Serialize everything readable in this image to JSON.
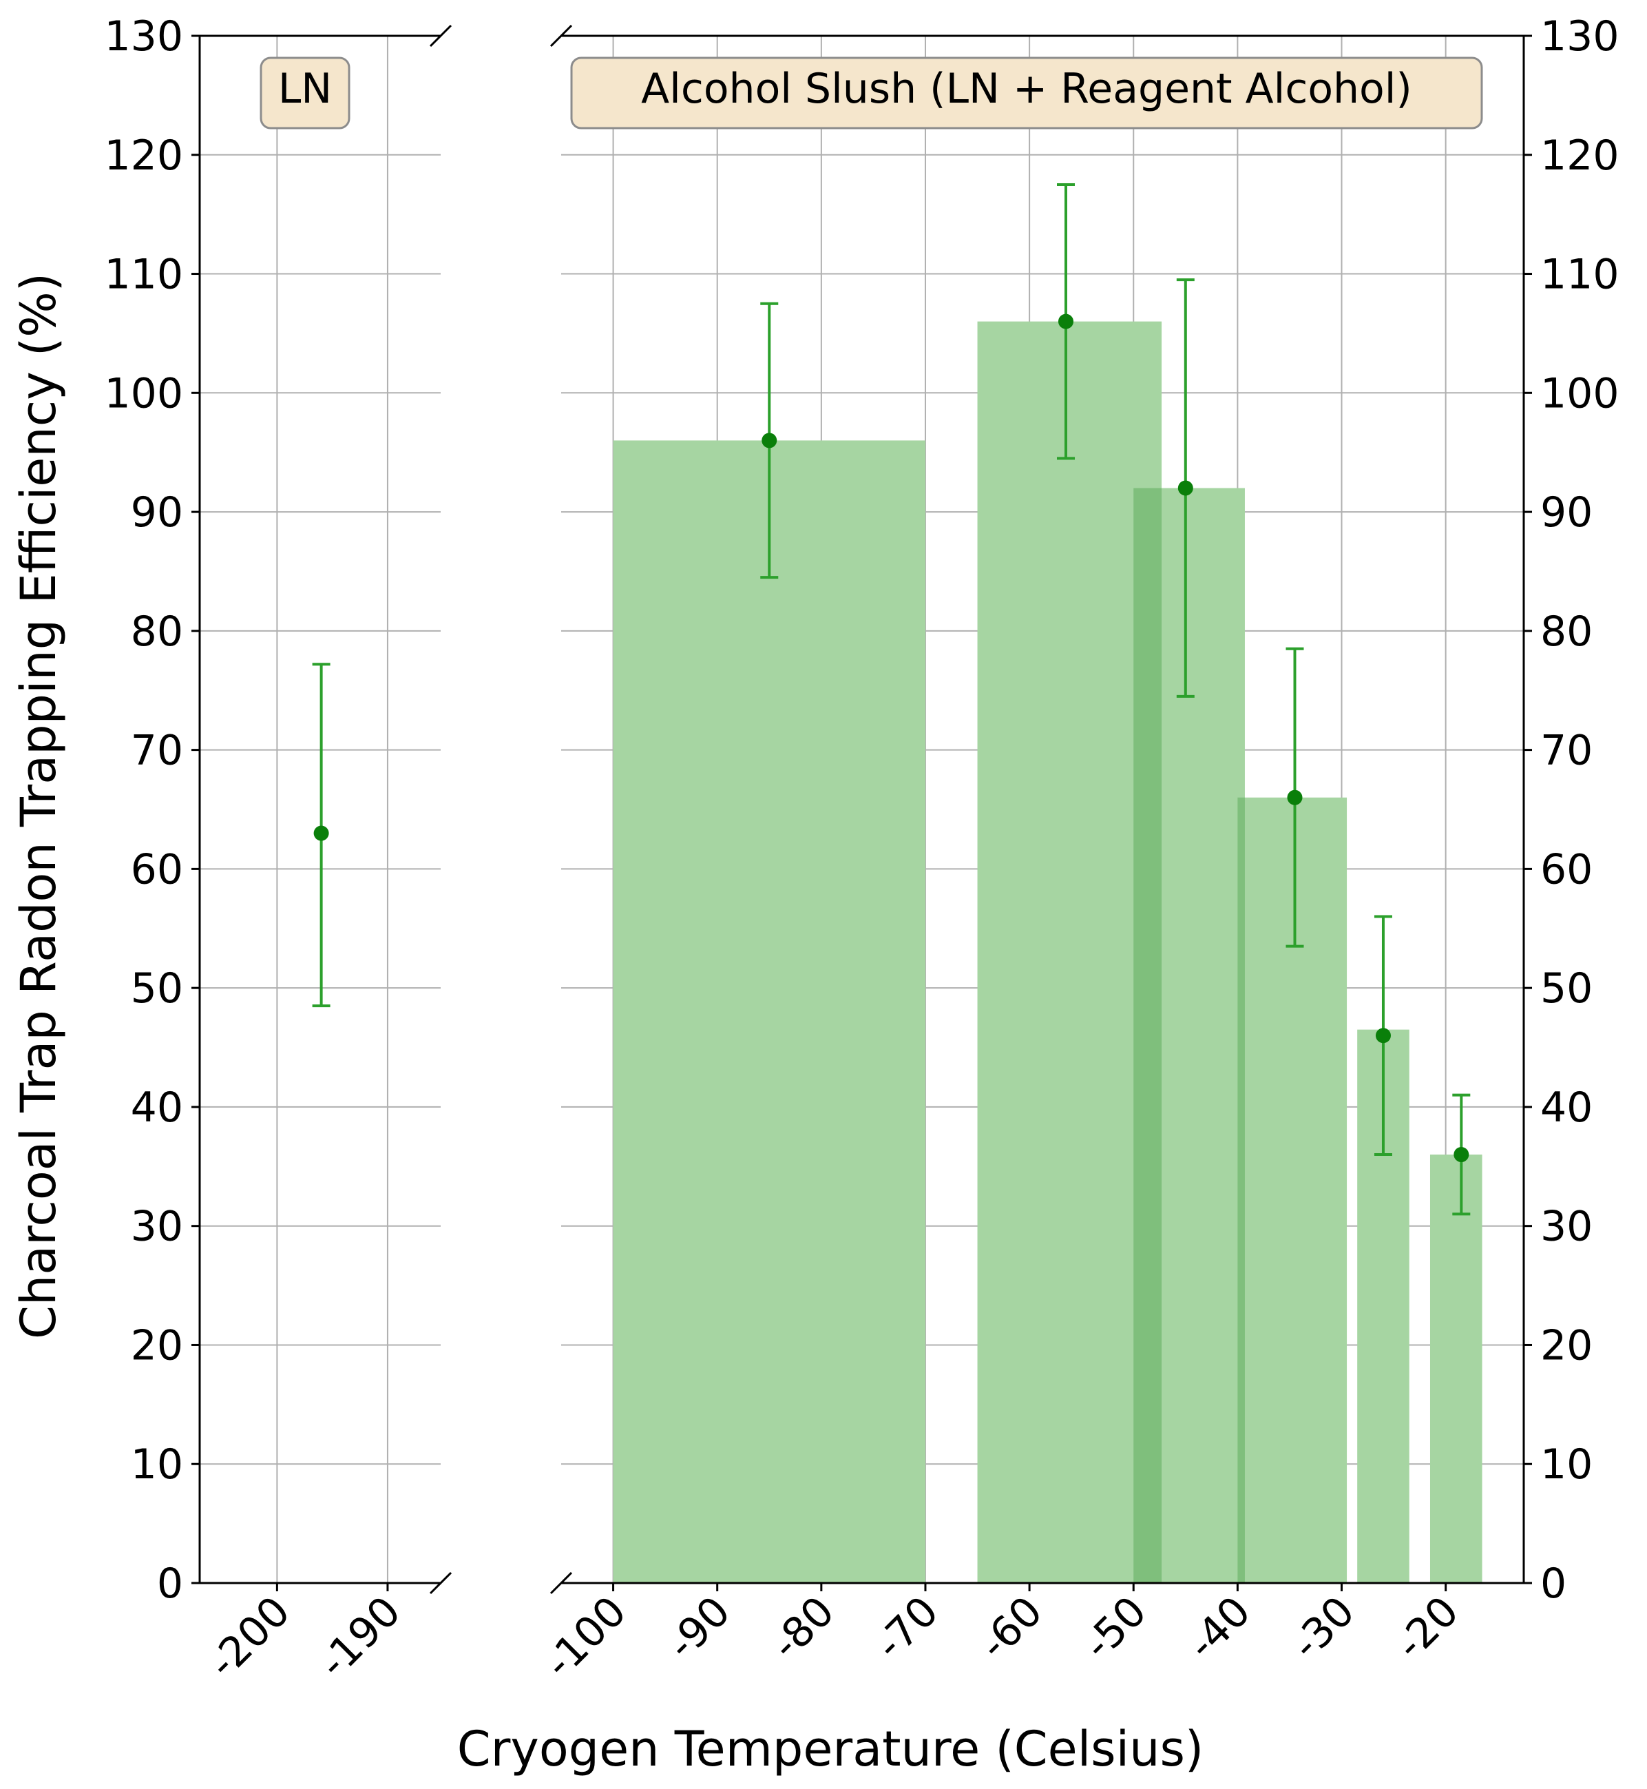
{
  "colors": {
    "bar_fill": "#a6d5a2",
    "bar_overlap": "#7fbf7c",
    "marker": "#0a7f0a",
    "errorbar": "#2ca02c",
    "grid": "#b0b0b0",
    "box_fill": "#f5e6cc",
    "box_stroke": "#8c8c8c"
  },
  "chart_data": {
    "type": "bar",
    "xlabel": "Cryogen Temperature (Celsius)",
    "ylabel": "Charcoal Trap Radon Trapping Efficiency (%)",
    "ylim": [
      0,
      130
    ],
    "yticks": [
      0,
      10,
      20,
      30,
      40,
      50,
      60,
      70,
      80,
      90,
      100,
      110,
      120,
      130
    ],
    "ytick_labels": [
      "0",
      "10",
      "20",
      "30",
      "40",
      "50",
      "60",
      "70",
      "80",
      "90",
      "100",
      "110",
      "120",
      "130"
    ],
    "grid": true,
    "broken_x_axis": true,
    "panels": [
      {
        "label": "LN",
        "xlim": [
          -207,
          -185.2
        ],
        "xticks": [
          -200,
          -190
        ],
        "xtick_labels": [
          "-200",
          "-190"
        ],
        "bars": [],
        "points": [
          {
            "x": -196,
            "y": 63,
            "err_low": 48.5,
            "err_high": 77.2
          }
        ]
      },
      {
        "label": "Alcohol Slush (LN + Reagent Alcohol)",
        "xlim": [
          -105,
          -12.5
        ],
        "xticks": [
          -100,
          -90,
          -80,
          -70,
          -60,
          -50,
          -40,
          -30,
          -20
        ],
        "xtick_labels": [
          "-100",
          "-90",
          "-80",
          "-70",
          "-60",
          "-50",
          "-40",
          "-30",
          "-20"
        ],
        "bars": [
          {
            "x_start": -100,
            "x_end": -70,
            "value": 96
          },
          {
            "x_start": -65,
            "x_end": -47.3,
            "value": 106
          },
          {
            "x_start": -50,
            "x_end": -39.3,
            "value": 92
          },
          {
            "x_start": -40,
            "x_end": -29.5,
            "value": 66
          },
          {
            "x_start": -28.5,
            "x_end": -23.5,
            "value": 46.5
          },
          {
            "x_start": -21.5,
            "x_end": -16.5,
            "value": 36
          }
        ],
        "points": [
          {
            "x": -85,
            "y": 96,
            "err_low": 84.5,
            "err_high": 107.5
          },
          {
            "x": -56.5,
            "y": 106,
            "err_low": 94.5,
            "err_high": 117.5
          },
          {
            "x": -45,
            "y": 92,
            "err_low": 74.5,
            "err_high": 109.5
          },
          {
            "x": -34.5,
            "y": 66,
            "err_low": 53.5,
            "err_high": 78.5
          },
          {
            "x": -26,
            "y": 46,
            "err_low": 36,
            "err_high": 56
          },
          {
            "x": -18.5,
            "y": 36,
            "err_low": 31,
            "err_high": 41
          }
        ]
      }
    ]
  }
}
